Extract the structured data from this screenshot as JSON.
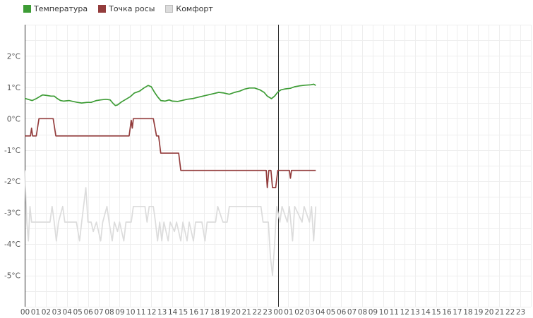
{
  "chart_data": {
    "type": "line",
    "legend_position": "top-left",
    "grid": true,
    "yunit": "°C",
    "ylim": [
      -6,
      3
    ],
    "yticks": [
      2,
      1,
      0,
      -1,
      -2,
      -3,
      -4,
      -5
    ],
    "ytick_labels": [
      "2°C",
      "1°C",
      "0°C",
      "-1°C",
      "-2°C",
      "-3°C",
      "-4°C",
      "-5°C"
    ],
    "xlim": [
      0,
      48
    ],
    "xtick_labels": [
      "00",
      "01",
      "02",
      "03",
      "04",
      "05",
      "06",
      "07",
      "08",
      "09",
      "10",
      "11",
      "12",
      "13",
      "14",
      "15",
      "16",
      "17",
      "18",
      "19",
      "20",
      "21",
      "22",
      "23",
      "00",
      "01",
      "02",
      "03",
      "04",
      "05",
      "06",
      "07",
      "08",
      "09",
      "10",
      "11",
      "12",
      "13",
      "14",
      "15",
      "16",
      "17",
      "18",
      "19",
      "20",
      "21",
      "22",
      "23"
    ],
    "day_boundaries": [
      0,
      24
    ],
    "series": [
      {
        "name": "Температура",
        "color": "#3d9c35",
        "points": [
          [
            0,
            0.65
          ],
          [
            0.3,
            0.62
          ],
          [
            0.7,
            0.58
          ],
          [
            1.1,
            0.64
          ],
          [
            1.5,
            0.72
          ],
          [
            1.7,
            0.76
          ],
          [
            2.1,
            0.74
          ],
          [
            2.5,
            0.72
          ],
          [
            2.8,
            0.72
          ],
          [
            3.1,
            0.64
          ],
          [
            3.4,
            0.58
          ],
          [
            3.7,
            0.56
          ],
          [
            4.2,
            0.58
          ],
          [
            4.6,
            0.55
          ],
          [
            5.0,
            0.52
          ],
          [
            5.4,
            0.5
          ],
          [
            5.9,
            0.52
          ],
          [
            6.3,
            0.52
          ],
          [
            6.8,
            0.58
          ],
          [
            7.2,
            0.6
          ],
          [
            7.7,
            0.62
          ],
          [
            8.1,
            0.6
          ],
          [
            8.4,
            0.48
          ],
          [
            8.6,
            0.42
          ],
          [
            8.8,
            0.44
          ],
          [
            9.2,
            0.54
          ],
          [
            9.6,
            0.62
          ],
          [
            10.0,
            0.7
          ],
          [
            10.4,
            0.82
          ],
          [
            10.9,
            0.88
          ],
          [
            11.3,
            0.98
          ],
          [
            11.7,
            1.06
          ],
          [
            12.0,
            1.02
          ],
          [
            12.3,
            0.85
          ],
          [
            12.6,
            0.7
          ],
          [
            12.9,
            0.58
          ],
          [
            13.3,
            0.56
          ],
          [
            13.7,
            0.6
          ],
          [
            14.0,
            0.56
          ],
          [
            14.5,
            0.55
          ],
          [
            14.9,
            0.58
          ],
          [
            15.4,
            0.62
          ],
          [
            15.9,
            0.64
          ],
          [
            16.4,
            0.68
          ],
          [
            16.9,
            0.72
          ],
          [
            17.4,
            0.76
          ],
          [
            17.9,
            0.8
          ],
          [
            18.4,
            0.84
          ],
          [
            18.9,
            0.82
          ],
          [
            19.4,
            0.78
          ],
          [
            19.9,
            0.84
          ],
          [
            20.4,
            0.88
          ],
          [
            20.8,
            0.94
          ],
          [
            21.3,
            0.98
          ],
          [
            21.8,
            0.98
          ],
          [
            22.3,
            0.92
          ],
          [
            22.7,
            0.84
          ],
          [
            23.0,
            0.72
          ],
          [
            23.4,
            0.64
          ],
          [
            23.7,
            0.72
          ],
          [
            24.0,
            0.85
          ],
          [
            24.3,
            0.92
          ],
          [
            24.7,
            0.95
          ],
          [
            25.2,
            0.97
          ],
          [
            25.6,
            1.02
          ],
          [
            26.1,
            1.05
          ],
          [
            26.6,
            1.07
          ],
          [
            27.1,
            1.08
          ],
          [
            27.4,
            1.1
          ],
          [
            27.6,
            1.06
          ]
        ]
      },
      {
        "name": "Точка росы",
        "color": "#933c3c",
        "points": [
          [
            0,
            -0.55
          ],
          [
            0.55,
            -0.55
          ],
          [
            0.65,
            -0.3
          ],
          [
            0.75,
            -0.55
          ],
          [
            1.1,
            -0.55
          ],
          [
            1.35,
            0
          ],
          [
            2.7,
            0
          ],
          [
            2.95,
            -0.55
          ],
          [
            9.9,
            -0.55
          ],
          [
            10.1,
            -0.05
          ],
          [
            10.2,
            -0.3
          ],
          [
            10.3,
            0
          ],
          [
            12.2,
            0
          ],
          [
            12.5,
            -0.55
          ],
          [
            12.7,
            -0.55
          ],
          [
            12.9,
            -1.1
          ],
          [
            14.6,
            -1.1
          ],
          [
            14.8,
            -1.65
          ],
          [
            22.9,
            -1.65
          ],
          [
            23.0,
            -2.2
          ],
          [
            23.15,
            -1.65
          ],
          [
            23.35,
            -1.65
          ],
          [
            23.5,
            -2.2
          ],
          [
            23.8,
            -2.2
          ],
          [
            24.0,
            -1.65
          ],
          [
            25.1,
            -1.65
          ],
          [
            25.2,
            -1.9
          ],
          [
            25.3,
            -1.65
          ],
          [
            27.6,
            -1.65
          ]
        ]
      },
      {
        "name": "Комфорт",
        "color": "#dcdcdc",
        "points": [
          [
            0,
            -1.65
          ],
          [
            0.2,
            -3.3
          ],
          [
            0.35,
            -3.9
          ],
          [
            0.5,
            -2.8
          ],
          [
            0.65,
            -3.3
          ],
          [
            1.2,
            -3.3
          ],
          [
            1.8,
            -3.3
          ],
          [
            2.4,
            -3.3
          ],
          [
            2.6,
            -2.8
          ],
          [
            2.8,
            -3.3
          ],
          [
            3.0,
            -3.9
          ],
          [
            3.2,
            -3.3
          ],
          [
            3.6,
            -2.8
          ],
          [
            3.8,
            -3.3
          ],
          [
            4.9,
            -3.3
          ],
          [
            5.2,
            -3.9
          ],
          [
            5.4,
            -3.3
          ],
          [
            5.8,
            -2.2
          ],
          [
            6.0,
            -3.3
          ],
          [
            6.3,
            -3.3
          ],
          [
            6.5,
            -3.6
          ],
          [
            6.8,
            -3.3
          ],
          [
            7.2,
            -3.9
          ],
          [
            7.4,
            -3.3
          ],
          [
            7.8,
            -2.8
          ],
          [
            8.0,
            -3.3
          ],
          [
            8.3,
            -3.9
          ],
          [
            8.5,
            -3.3
          ],
          [
            8.8,
            -3.6
          ],
          [
            9.0,
            -3.3
          ],
          [
            9.4,
            -3.9
          ],
          [
            9.6,
            -3.3
          ],
          [
            10.1,
            -3.3
          ],
          [
            10.3,
            -2.8
          ],
          [
            11.4,
            -2.8
          ],
          [
            11.6,
            -3.3
          ],
          [
            11.8,
            -2.8
          ],
          [
            12.2,
            -2.8
          ],
          [
            12.4,
            -3.3
          ],
          [
            12.6,
            -3.9
          ],
          [
            12.8,
            -3.3
          ],
          [
            13.0,
            -3.9
          ],
          [
            13.2,
            -3.3
          ],
          [
            13.6,
            -3.9
          ],
          [
            13.8,
            -3.3
          ],
          [
            14.2,
            -3.6
          ],
          [
            14.4,
            -3.3
          ],
          [
            14.8,
            -3.9
          ],
          [
            15.0,
            -3.3
          ],
          [
            15.4,
            -3.9
          ],
          [
            15.6,
            -3.3
          ],
          [
            16.0,
            -3.9
          ],
          [
            16.2,
            -3.3
          ],
          [
            16.8,
            -3.3
          ],
          [
            17.1,
            -3.9
          ],
          [
            17.3,
            -3.3
          ],
          [
            18.1,
            -3.3
          ],
          [
            18.3,
            -2.8
          ],
          [
            18.8,
            -3.3
          ],
          [
            19.2,
            -3.3
          ],
          [
            19.4,
            -2.8
          ],
          [
            22.4,
            -2.8
          ],
          [
            22.6,
            -3.3
          ],
          [
            23.1,
            -3.3
          ],
          [
            23.3,
            -4.4
          ],
          [
            23.5,
            -5.0
          ],
          [
            23.7,
            -4.0
          ],
          [
            23.9,
            -2.8
          ],
          [
            24.2,
            -3.3
          ],
          [
            24.4,
            -2.8
          ],
          [
            24.9,
            -3.3
          ],
          [
            25.1,
            -2.8
          ],
          [
            25.4,
            -3.9
          ],
          [
            25.6,
            -2.8
          ],
          [
            26.3,
            -3.3
          ],
          [
            26.5,
            -2.8
          ],
          [
            27.0,
            -3.3
          ],
          [
            27.2,
            -2.8
          ],
          [
            27.4,
            -3.9
          ],
          [
            27.6,
            -2.8
          ]
        ]
      }
    ]
  }
}
